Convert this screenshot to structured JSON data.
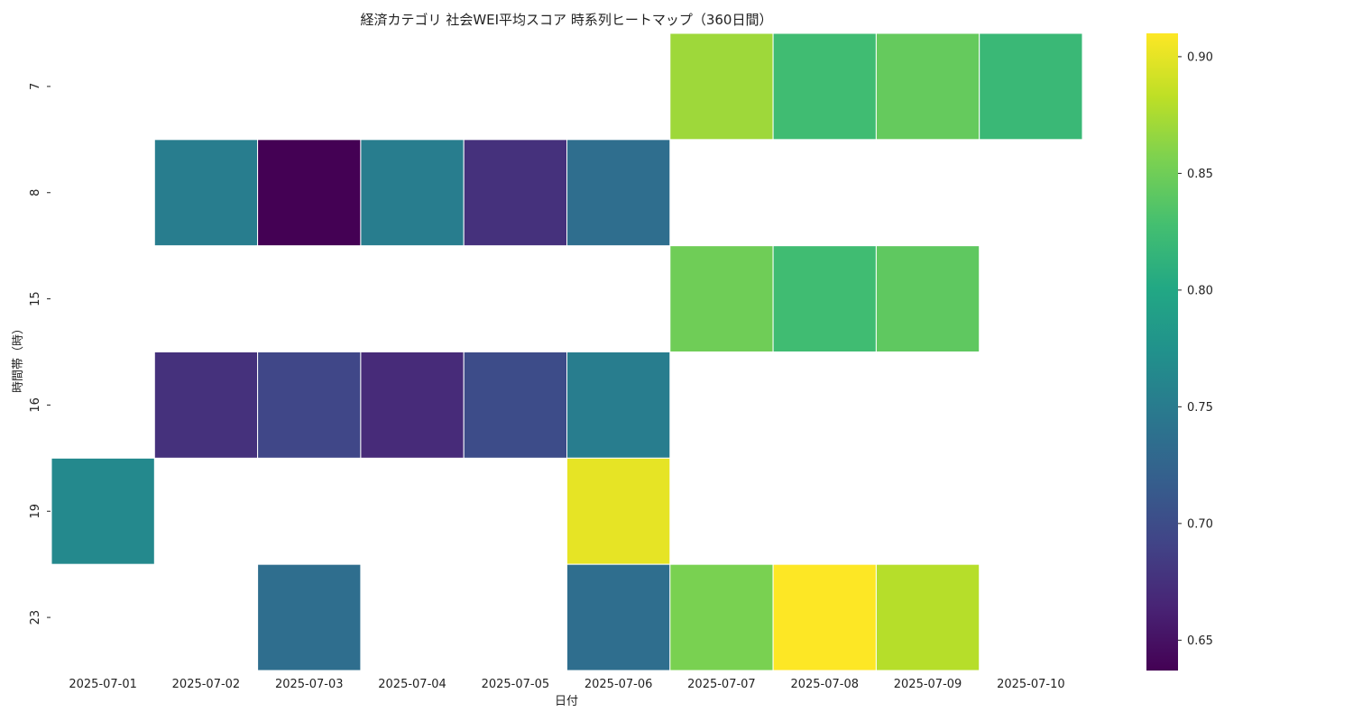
{
  "chart_data": {
    "type": "heatmap",
    "title": "経済カテゴリ 社会WEI平均スコア 時系列ヒートマップ（360日間）",
    "xlabel": "日付",
    "ylabel": "時間帯（時）",
    "x_categories": [
      "2025-07-01",
      "2025-07-02",
      "2025-07-03",
      "2025-07-04",
      "2025-07-05",
      "2025-07-06",
      "2025-07-07",
      "2025-07-08",
      "2025-07-09",
      "2025-07-10"
    ],
    "y_categories": [
      "7",
      "8",
      "15",
      "16",
      "19",
      "23"
    ],
    "values": [
      [
        null,
        null,
        null,
        null,
        null,
        null,
        0.87,
        0.825,
        0.845,
        0.82
      ],
      [
        null,
        0.752,
        0.637,
        0.752,
        0.675,
        0.735,
        null,
        null,
        null,
        null
      ],
      [
        null,
        null,
        null,
        null,
        null,
        null,
        0.85,
        0.825,
        0.842,
        null
      ],
      [
        null,
        0.675,
        0.695,
        0.67,
        0.7,
        0.752,
        null,
        null,
        null,
        null
      ],
      [
        0.765,
        null,
        null,
        null,
        null,
        0.9,
        null,
        null,
        null,
        null
      ],
      [
        null,
        null,
        0.735,
        null,
        null,
        0.735,
        0.855,
        0.91,
        0.88,
        null
      ]
    ],
    "colormap": "viridis",
    "colorbar": {
      "vmin": 0.637,
      "vmax": 0.91,
      "ticks": [
        "0.65",
        "0.70",
        "0.75",
        "0.80",
        "0.85",
        "0.90"
      ]
    },
    "cell_border_color": "#ffffff"
  }
}
